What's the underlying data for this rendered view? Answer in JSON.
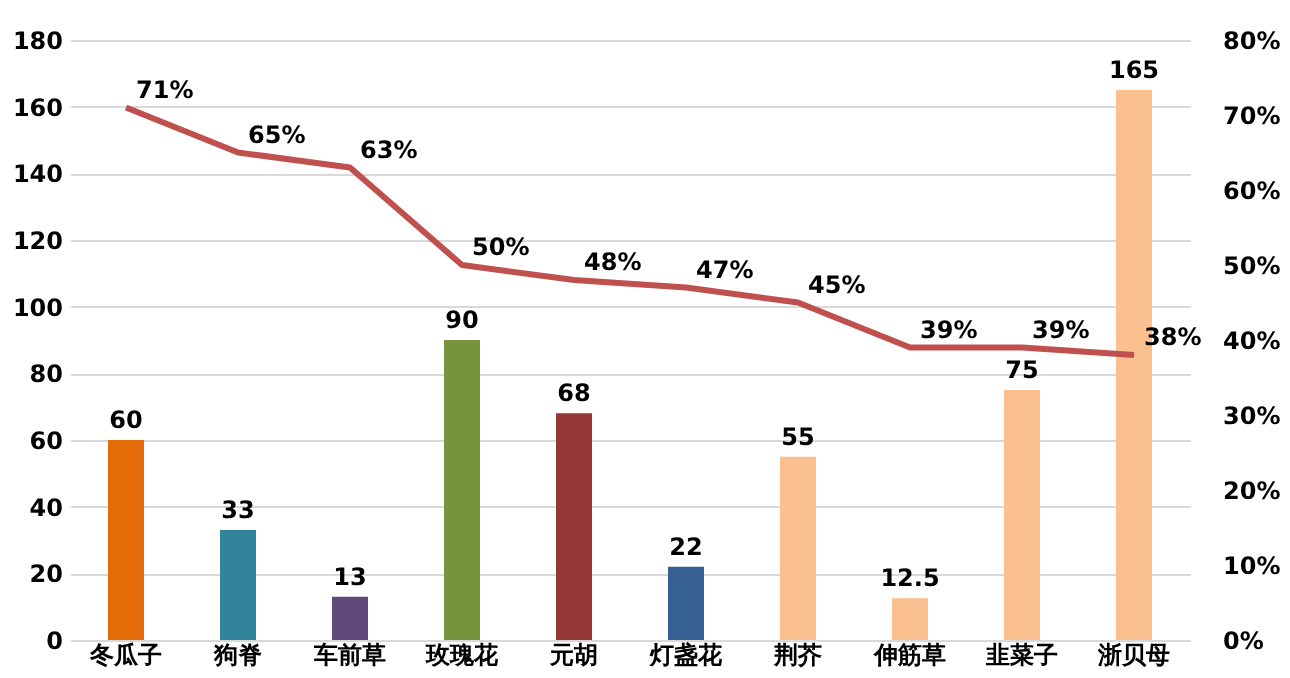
{
  "chart_data": {
    "type": "bar",
    "categories": [
      "冬瓜子",
      "狗脊",
      "车前草",
      "玫瑰花",
      "元胡",
      "灯盏花",
      "荆芥",
      "伸筋草",
      "韭菜子",
      "浙贝母"
    ],
    "series": [
      {
        "type": "bar",
        "colors": [
          "#e36c09",
          "#31849b",
          "#604a7b",
          "#77933c",
          "#953735",
          "#376092",
          "#fac08f",
          "#fac08f",
          "#fac08f",
          "#fac08f"
        ],
        "values": [
          60,
          33,
          13,
          90,
          68,
          22,
          55,
          12.5,
          75,
          165
        ],
        "value_labels": [
          "60",
          "33",
          "13",
          "90",
          "68",
          "22",
          "55",
          "12.5",
          "75",
          "165"
        ]
      },
      {
        "type": "line",
        "axis": "y2",
        "color": "#c0504d",
        "values": [
          71,
          65,
          63,
          50,
          48,
          47,
          45,
          39,
          39,
          38
        ],
        "value_labels": [
          "71%",
          "65%",
          "63%",
          "50%",
          "48%",
          "47%",
          "45%",
          "39%",
          "39%",
          "38%"
        ]
      }
    ],
    "ylim": [
      0,
      180
    ],
    "yticks": [
      0,
      20,
      40,
      60,
      80,
      100,
      120,
      140,
      160,
      180
    ],
    "y2lim": [
      0,
      80
    ],
    "y2ticks": [
      {
        "value": 0,
        "label": "0%"
      },
      {
        "value": 10,
        "label": "10%"
      },
      {
        "value": 20,
        "label": "20%"
      },
      {
        "value": 30,
        "label": "30%"
      },
      {
        "value": 40,
        "label": "40%"
      },
      {
        "value": 50,
        "label": "50%"
      },
      {
        "value": 60,
        "label": "60%"
      },
      {
        "value": 70,
        "label": "70%"
      },
      {
        "value": 80,
        "label": "80%"
      }
    ],
    "grid": "y",
    "legend": false
  }
}
